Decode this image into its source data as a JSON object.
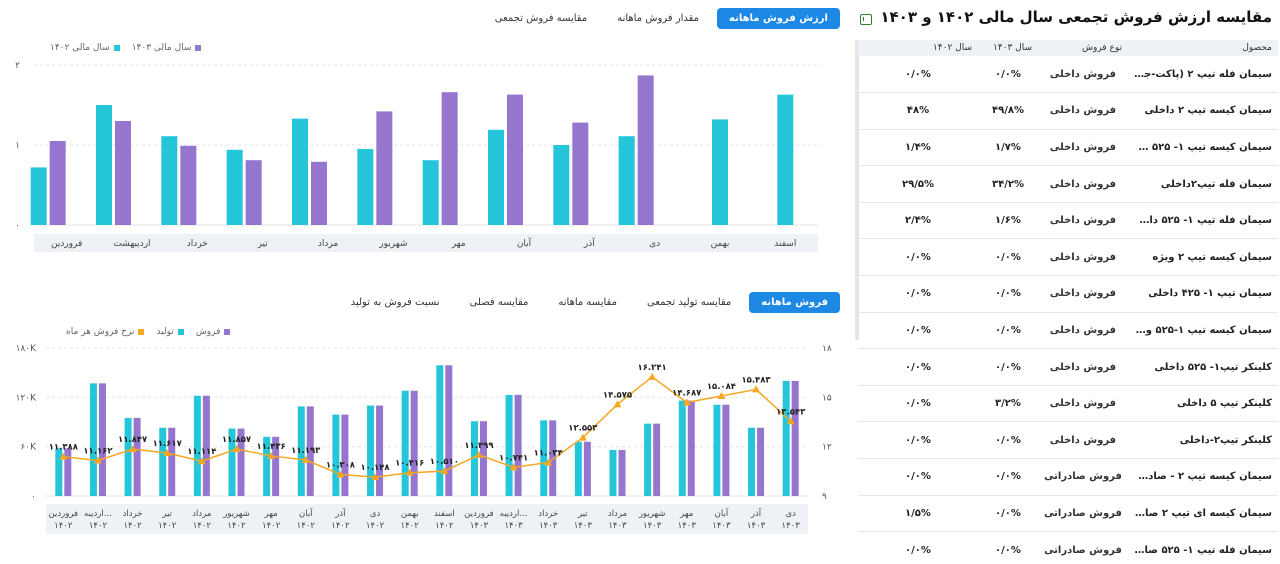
{
  "top_tabs": [
    "ارزش فروش ماهانه",
    "مقدار فروش ماهانه",
    "مقایسه فروش تجمعی"
  ],
  "top_active": 0,
  "bottom_tabs": [
    "فروش ماهانه",
    "مقایسه تولید تجمعی",
    "مقایسه ماهانه",
    "مقایسه فصلی",
    "نسبت فروش به تولید"
  ],
  "bottom_active": 0,
  "right_panel": {
    "title": "مقایسه ارزش فروش تجمعی سال مالی ۱۴۰۲ و ۱۴۰۳",
    "export_icon": "excel-export-icon",
    "headers": [
      "محصول",
      "نوع فروش",
      "سال ۱۴۰۳",
      "سال ۱۴۰۲"
    ],
    "rows": [
      [
        "سیمان فله تیپ ۲ (پاکت-جامبو...",
        "فروش داخلی",
        "۰/۰%",
        "۰/۰%"
      ],
      [
        "سیمان کیسه تیپ ۲ داخلی",
        "فروش داخلی",
        "۴۹/۸%",
        "۴۸%"
      ],
      [
        "سیمان کیسه تیپ ۱- ۵۲۵ داخلی",
        "فروش داخلی",
        "۱/۷%",
        "۱/۴%"
      ],
      [
        "سیمان فله تیپ۲داخلی",
        "فروش داخلی",
        "۳۴/۲%",
        "۲۹/۵%"
      ],
      [
        "سیمان فله تیپ ۱- ۵۲۵ داخلی",
        "فروش داخلی",
        "۱/۶%",
        "۲/۴%"
      ],
      [
        "سیمان کیسه تیپ ۲ ویژه",
        "فروش داخلی",
        "۰/۰%",
        "۰/۰%"
      ],
      [
        "سیمان تیپ ۱- ۴۲۵ داخلی",
        "فروش داخلی",
        "۰/۰%",
        "۰/۰%"
      ],
      [
        "سیمان کیسه تیپ ۱-۵۲۵ ویژه",
        "فروش داخلی",
        "۰/۰%",
        "۰/۰%"
      ],
      [
        "کلینکر تیپ۱- ۵۲۵ داخلی",
        "فروش داخلی",
        "۰/۰%",
        "۰/۰%"
      ],
      [
        "کلینکر تیپ ۵ داخلی",
        "فروش داخلی",
        "۳/۲%",
        "۰/۰%"
      ],
      [
        "کلینکر تیپ۲-داخلی",
        "فروش داخلی",
        "۰/۰%",
        "۰/۰%"
      ],
      [
        "سیمان کیسه تیپ ۲ - صادراتی جا...",
        "فروش صادراتی",
        "۰/۰%",
        "۰/۰%"
      ],
      [
        "سیمان کیسه ای تیپ ۲ صادراتی ل...",
        "فروش صادراتی",
        "۰/۰%",
        "۱/۵%"
      ],
      [
        "سیمان فله تیپ ۱- ۵۲۵ صادراتی ل...",
        "فروش صادراتی",
        "۰/۰%",
        "۰/۰%"
      ]
    ]
  },
  "colors": {
    "primary": "#1e88e5",
    "teal": "#26c6da",
    "purple": "#9575cd",
    "orange": "#f5a623",
    "grid": "#e6e6e6",
    "axis_band": "#eef1f5"
  },
  "chart_data": [
    {
      "type": "bar",
      "legend": [
        {
          "name": "سال مالی ۱۴۰۳",
          "color": "#9575cd"
        },
        {
          "name": "سال مالی ۱۴۰۲",
          "color": "#26c6da"
        }
      ],
      "y_ticks": [
        "۰",
        "۱",
        "۲"
      ],
      "ylim": [
        0,
        2
      ],
      "grid": true,
      "legend_position": "top-left",
      "categories": [
        "فروردین",
        "اردیبهشت",
        "خرداد",
        "تیر",
        "مرداد",
        "شهریور",
        "مهر",
        "آبان",
        "آذر",
        "دی",
        "بهمن",
        "اسفند"
      ],
      "series": [
        {
          "name": "سال مالی ۱۴۰۲",
          "color": "#26c6da",
          "values": [
            0.72,
            1.5,
            1.11,
            0.94,
            1.33,
            0.95,
            0.81,
            1.19,
            1.0,
            1.11,
            1.32,
            1.63
          ]
        },
        {
          "name": "سال مالی ۱۴۰۳",
          "color": "#9575cd",
          "values": [
            1.05,
            1.3,
            0.99,
            0.81,
            0.79,
            1.42,
            1.66,
            1.63,
            1.28,
            1.87,
            null,
            null
          ]
        }
      ]
    },
    {
      "type": "bar",
      "legend": [
        {
          "name": "فروش",
          "color": "#9575cd"
        },
        {
          "name": "تولید",
          "color": "#26c6da"
        },
        {
          "name": "نرخ فروش هر ماه",
          "color": "#f5a623"
        }
      ],
      "y_ticks_left": [
        "۰",
        "۶۰K",
        "۱۲۰K",
        "۱۸۰K"
      ],
      "ylim_left": [
        0,
        180000
      ],
      "y_ticks_right": [
        "۹",
        "۱۲",
        "۱۵",
        "۱۸"
      ],
      "ylim_right": [
        9,
        18
      ],
      "grid": true,
      "legend_position": "top-left",
      "categories": [
        [
          "فروردین",
          "۱۴۰۲"
        ],
        [
          "اردیبه...",
          "۱۴۰۲"
        ],
        [
          "خرداد",
          "۱۴۰۲"
        ],
        [
          "تیر",
          "۱۴۰۲"
        ],
        [
          "مرداد",
          "۱۴۰۲"
        ],
        [
          "شهریور",
          "۱۴۰۲"
        ],
        [
          "مهر",
          "۱۴۰۲"
        ],
        [
          "آبان",
          "۱۴۰۲"
        ],
        [
          "آذر",
          "۱۴۰۲"
        ],
        [
          "دی",
          "۱۴۰۲"
        ],
        [
          "بهمن",
          "۱۴۰۲"
        ],
        [
          "اسفند",
          "۱۴۰۲"
        ],
        [
          "فروردین",
          "۱۴۰۳"
        ],
        [
          "اردیبه...",
          "۱۴۰۳"
        ],
        [
          "خرداد",
          "۱۴۰۳"
        ],
        [
          "تیر",
          "۱۴۰۳"
        ],
        [
          "مرداد",
          "۱۴۰۳"
        ],
        [
          "شهریور",
          "۱۴۰۳"
        ],
        [
          "مهر",
          "۱۴۰۳"
        ],
        [
          "آبان",
          "۱۴۰۳"
        ],
        [
          "آذر",
          "۱۴۰۳"
        ],
        [
          "دی",
          "۱۴۰۳"
        ]
      ],
      "series": [
        {
          "name": "تولید",
          "color": "#26c6da",
          "values": [
            58000,
            137000,
            95000,
            83000,
            122000,
            82000,
            72000,
            109000,
            99000,
            110000,
            128000,
            159000,
            91000,
            123000,
            92000,
            66000,
            56000,
            88000,
            116000,
            111000,
            83000,
            140000
          ]
        },
        {
          "name": "فروش",
          "color": "#9575cd",
          "values": [
            58000,
            137000,
            95000,
            83000,
            122000,
            82000,
            72000,
            109000,
            99000,
            110000,
            128000,
            159000,
            91000,
            123000,
            92000,
            66000,
            56000,
            88000,
            116000,
            111000,
            83000,
            140000
          ]
        },
        {
          "name": "نرخ فروش هر ماه",
          "color": "#f5a623",
          "values": [
            11.388,
            11.162,
            11.847,
            11.617,
            11.114,
            11.857,
            11.436,
            11.193,
            10.308,
            10.148,
            10.416,
            10.51,
            11.499,
            10.741,
            11.034,
            12.553,
            14.575,
            16.241,
            14.687,
            15.084,
            15.483,
            13.543
          ]
        }
      ],
      "data_labels": [
        "۱۱.۳۸۸",
        "۱۱.۱۶۲",
        "۱۱.۸۴۷",
        "۱۱.۶۱۷",
        "۱۱.۱۱۴",
        "۱۱.۸۵۷",
        "۱۱.۴۳۶",
        "۱۱.۱۹۳",
        "۱۰.۳۰۸",
        "۱۰.۱۴۸",
        "۱۰.۴۱۶",
        "۱۰.۵۱۰",
        "۱۱.۴۹۹",
        "۱۰.۷۴۱",
        "۱۱.۰۳۴",
        "۱۲.۵۵۳",
        "۱۴.۵۷۵",
        "۱۶.۲۴۱",
        "۱۴.۶۸۷",
        "۱۵.۰۸۴",
        "۱۵.۴۸۳",
        "۱۳.۵۴۳"
      ]
    }
  ]
}
